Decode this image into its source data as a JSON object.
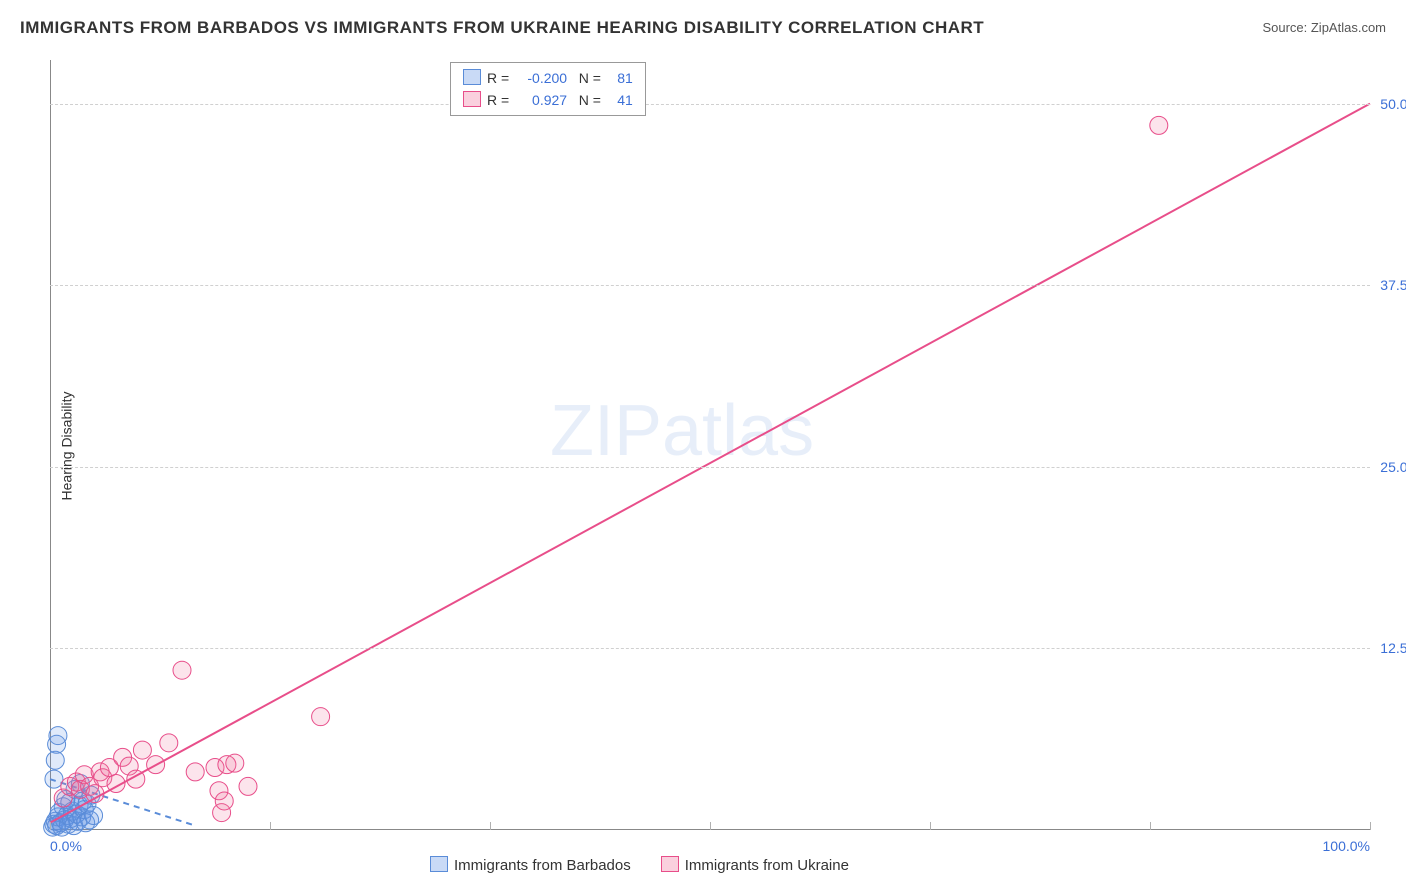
{
  "title": "IMMIGRANTS FROM BARBADOS VS IMMIGRANTS FROM UKRAINE HEARING DISABILITY CORRELATION CHART",
  "source": "Source: ZipAtlas.com",
  "watermark": "ZIPatlas",
  "ylabel": "Hearing Disability",
  "chart": {
    "type": "scatter",
    "xlim": [
      0,
      100
    ],
    "ylim": [
      0,
      53
    ],
    "xticks": [
      0,
      16.67,
      33.33,
      50,
      66.67,
      83.33,
      100
    ],
    "xticklabels": [
      "0.0%",
      "",
      "",
      "",
      "",
      "",
      "100.0%"
    ],
    "yticks": [
      12.5,
      25.0,
      37.5,
      50.0
    ],
    "yticklabels": [
      "12.5%",
      "25.0%",
      "37.5%",
      "50.0%"
    ],
    "background_color": "#ffffff",
    "grid_color": "#d0d0d0",
    "axis_color": "#888888",
    "tick_label_color": "#3b6fd6",
    "marker_radius": 9,
    "marker_stroke_width": 1,
    "trend_width": 2,
    "series": [
      {
        "name": "Immigrants from Barbados",
        "fill": "rgba(100,150,230,0.20)",
        "stroke": "#5a8cd8",
        "R": "-0.200",
        "N": "81",
        "trend": {
          "x1": 0,
          "y1": 3.5,
          "x2": 11,
          "y2": 0.3,
          "dash": "6 5"
        },
        "points": [
          [
            0.2,
            0.2
          ],
          [
            0.3,
            0.4
          ],
          [
            0.4,
            0.6
          ],
          [
            0.5,
            0.3
          ],
          [
            0.6,
            0.9
          ],
          [
            0.7,
            1.2
          ],
          [
            0.8,
            0.5
          ],
          [
            0.9,
            0.2
          ],
          [
            1.0,
            1.6
          ],
          [
            1.1,
            0.7
          ],
          [
            1.2,
            2.1
          ],
          [
            1.3,
            1.0
          ],
          [
            1.4,
            0.4
          ],
          [
            1.5,
            1.9
          ],
          [
            1.6,
            0.8
          ],
          [
            1.7,
            1.3
          ],
          [
            1.8,
            0.3
          ],
          [
            1.9,
            2.8
          ],
          [
            2.0,
            1.1
          ],
          [
            2.1,
            0.6
          ],
          [
            2.2,
            1.7
          ],
          [
            2.3,
            3.2
          ],
          [
            2.4,
            0.9
          ],
          [
            2.5,
            2.0
          ],
          [
            0.3,
            3.5
          ],
          [
            0.4,
            4.8
          ],
          [
            0.5,
            5.9
          ],
          [
            0.6,
            6.5
          ],
          [
            2.6,
            1.4
          ],
          [
            2.7,
            0.5
          ],
          [
            2.8,
            1.8
          ],
          [
            3.0,
            0.7
          ],
          [
            3.1,
            2.4
          ],
          [
            3.3,
            1.0
          ]
        ]
      },
      {
        "name": "Immigrants from Ukraine",
        "fill": "rgba(240,120,160,0.20)",
        "stroke": "#e84e8a",
        "R": "0.927",
        "N": "41",
        "trend": {
          "x1": 0,
          "y1": 0.5,
          "x2": 100,
          "y2": 50,
          "dash": null
        },
        "points": [
          [
            1.0,
            2.2
          ],
          [
            1.5,
            3.0
          ],
          [
            2.0,
            3.3
          ],
          [
            2.3,
            2.8
          ],
          [
            2.6,
            3.8
          ],
          [
            3.0,
            3.0
          ],
          [
            3.4,
            2.5
          ],
          [
            3.8,
            4.0
          ],
          [
            4.0,
            3.6
          ],
          [
            4.5,
            4.3
          ],
          [
            5.0,
            3.2
          ],
          [
            5.5,
            5.0
          ],
          [
            6.0,
            4.4
          ],
          [
            6.5,
            3.5
          ],
          [
            7.0,
            5.5
          ],
          [
            8.0,
            4.5
          ],
          [
            9.0,
            6.0
          ],
          [
            10.0,
            11.0
          ],
          [
            11.0,
            4.0
          ],
          [
            12.5,
            4.3
          ],
          [
            12.8,
            2.7
          ],
          [
            13.0,
            1.2
          ],
          [
            13.2,
            2.0
          ],
          [
            13.4,
            4.5
          ],
          [
            14.0,
            4.6
          ],
          [
            15.0,
            3.0
          ],
          [
            20.5,
            7.8
          ],
          [
            84.0,
            48.5
          ]
        ]
      }
    ]
  },
  "legend_bottom": [
    {
      "label": "Immigrants from Barbados",
      "fill": "rgba(100,150,230,0.35)",
      "stroke": "#5a8cd8"
    },
    {
      "label": "Immigrants from Ukraine",
      "fill": "rgba(240,120,160,0.35)",
      "stroke": "#e84e8a"
    }
  ],
  "legend_top": [
    {
      "fill": "rgba(100,150,230,0.35)",
      "stroke": "#5a8cd8",
      "R": "-0.200",
      "N": "81"
    },
    {
      "fill": "rgba(240,120,160,0.35)",
      "stroke": "#e84e8a",
      "R": "0.927",
      "N": "41"
    }
  ]
}
